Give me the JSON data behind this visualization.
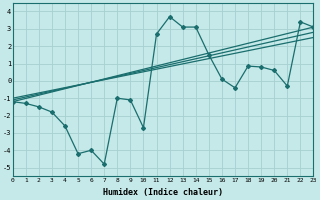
{
  "xlabel": "Humidex (Indice chaleur)",
  "ylabel": "",
  "xlim": [
    0,
    23
  ],
  "ylim": [
    -5.5,
    4.5
  ],
  "xticks": [
    0,
    1,
    2,
    3,
    4,
    5,
    6,
    7,
    8,
    9,
    10,
    11,
    12,
    13,
    14,
    15,
    16,
    17,
    18,
    19,
    20,
    21,
    22,
    23
  ],
  "yticks": [
    -5,
    -4,
    -3,
    -2,
    -1,
    0,
    1,
    2,
    3,
    4
  ],
  "background_color": "#c5e8e8",
  "grid_color": "#a8d0d0",
  "line_color": "#1a6e6e",
  "line1_x": [
    0,
    1,
    2,
    3,
    4,
    5,
    6,
    7,
    8,
    9,
    10,
    11,
    12,
    13,
    14,
    15,
    16,
    17,
    18,
    19,
    20,
    21,
    22,
    23
  ],
  "line1_y": [
    -1.2,
    -1.3,
    -1.5,
    -1.8,
    -2.6,
    -4.2,
    -4.0,
    -4.8,
    -1.0,
    -1.1,
    -2.7,
    2.7,
    3.7,
    3.1,
    3.1,
    1.5,
    0.1,
    -0.4,
    0.85,
    0.8,
    0.6,
    -0.3,
    3.4,
    3.1
  ],
  "line2_x": [
    0,
    23
  ],
  "line2_y": [
    -1.2,
    3.1
  ],
  "line3_x": [
    0,
    23
  ],
  "line3_y": [
    -1.1,
    2.8
  ],
  "line4_x": [
    0,
    23
  ],
  "line4_y": [
    -1.0,
    2.5
  ]
}
